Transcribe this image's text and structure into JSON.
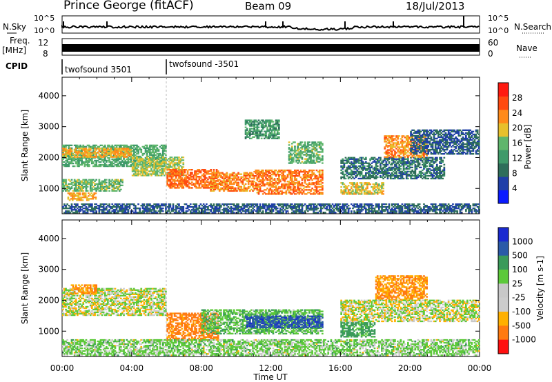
{
  "header": {
    "station": "Prince George (fitACF)",
    "beam": "Beam 09",
    "date": "18/Jul/2013"
  },
  "top_panels": {
    "nsky_label": "N.Sky",
    "nsky_ticks": [
      "10^5",
      "10^0"
    ],
    "nsearch_label": "N.Search",
    "nsearch_ticks": [
      "10^5",
      "10^0"
    ],
    "freq_label": "Freq.",
    "freq_unit": "[MHz]",
    "freq_ticks": [
      "12",
      "8"
    ],
    "nave_label": "Nave",
    "nave_ticks": [
      "60",
      "0"
    ],
    "cpid_label": "CPID",
    "cpid_segments": [
      {
        "name": "twofsound 3501",
        "start_hour": 0,
        "end_hour": 6
      },
      {
        "name": "twofsound -3501",
        "start_hour": 6,
        "end_hour": 24
      }
    ]
  },
  "colors": {
    "power_scale": [
      "#0a1aff",
      "#1f3fa8",
      "#2e6e5a",
      "#3f9a6a",
      "#5fb66c",
      "#e7c02c",
      "#ff8a1a",
      "#ff4a10",
      "#ff1a10"
    ],
    "velocity_scale": [
      "#ff1010",
      "#ff7a10",
      "#ffb000",
      "#cccccc",
      "#c8c8c8",
      "#5cc93a",
      "#3a9a5a",
      "#2a5aa8",
      "#1a2ad0"
    ]
  },
  "chart_data": [
    {
      "type": "heatmap",
      "name": "power",
      "xlabel": "",
      "ylabel": "Slant Range [km]",
      "xlim": [
        0,
        24
      ],
      "ylim": [
        180,
        4600
      ],
      "y_ticks": [
        "1000",
        "2000",
        "3000",
        "4000"
      ],
      "colorbar_label": "Power [dB]",
      "colorbar_ticks": [
        "4",
        "8",
        "12",
        "16",
        "20",
        "24",
        "28"
      ],
      "colorbar_range": [
        0,
        32
      ],
      "regions": [
        {
          "t0": 0.0,
          "t1": 6.0,
          "r0": 1700,
          "r1": 2400,
          "level": 14
        },
        {
          "t0": 0.0,
          "t1": 4.0,
          "r0": 2000,
          "r1": 2300,
          "level": 22
        },
        {
          "t0": 0.0,
          "t1": 3.5,
          "r0": 900,
          "r1": 1300,
          "level": 16
        },
        {
          "t0": 0.3,
          "t1": 2.0,
          "r0": 600,
          "r1": 850,
          "level": 22
        },
        {
          "t0": 4.0,
          "t1": 7.0,
          "r0": 1400,
          "r1": 2000,
          "level": 18
        },
        {
          "t0": 6.0,
          "t1": 9.0,
          "r0": 1000,
          "r1": 1600,
          "level": 26
        },
        {
          "t0": 8.5,
          "t1": 11.0,
          "r0": 900,
          "r1": 1500,
          "level": 24
        },
        {
          "t0": 11.0,
          "t1": 15.0,
          "r0": 800,
          "r1": 1600,
          "level": 25
        },
        {
          "t0": 10.5,
          "t1": 12.5,
          "r0": 2600,
          "r1": 3200,
          "level": 12
        },
        {
          "t0": 13.0,
          "t1": 15.0,
          "r0": 1800,
          "r1": 2500,
          "level": 15
        },
        {
          "t0": 16.0,
          "t1": 18.5,
          "r0": 800,
          "r1": 1200,
          "level": 20
        },
        {
          "t0": 16.0,
          "t1": 22.0,
          "r0": 1300,
          "r1": 2000,
          "level": 8
        },
        {
          "t0": 18.5,
          "t1": 21.0,
          "r0": 2000,
          "r1": 2700,
          "level": 24
        },
        {
          "t0": 20.0,
          "t1": 24.0,
          "r0": 2100,
          "r1": 2900,
          "level": 6
        },
        {
          "t0": 0.0,
          "t1": 24.0,
          "r0": 200,
          "r1": 500,
          "level": 6
        }
      ]
    },
    {
      "type": "heatmap",
      "name": "velocity",
      "xlabel": "Time UT",
      "ylabel": "Slant Range [km]",
      "xlim": [
        0,
        24
      ],
      "ylim": [
        180,
        4600
      ],
      "x_ticks": [
        "00:00",
        "04:00",
        "08:00",
        "12:00",
        "16:00",
        "20:00",
        "00:00"
      ],
      "y_ticks": [
        "1000",
        "2000",
        "3000",
        "4000"
      ],
      "colorbar_label": "Velocity [m s-1]",
      "colorbar_ticks": [
        "1000",
        "500",
        "100",
        "25",
        "-25",
        "-100",
        "-500",
        "-1000"
      ],
      "regions": [
        {
          "t0": 0.0,
          "t1": 6.0,
          "r0": 1500,
          "r1": 2400,
          "vel": 0
        },
        {
          "t0": 0.5,
          "t1": 2.0,
          "r0": 2200,
          "r1": 2500,
          "vel": -300
        },
        {
          "t0": 6.0,
          "t1": 9.0,
          "r0": 700,
          "r1": 1600,
          "vel": -400
        },
        {
          "t0": 8.0,
          "t1": 15.0,
          "r0": 900,
          "r1": 1700,
          "vel": 150
        },
        {
          "t0": 10.5,
          "t1": 15.0,
          "r0": 1100,
          "r1": 1500,
          "vel": 700
        },
        {
          "t0": 16.0,
          "t1": 18.0,
          "r0": 800,
          "r1": 1300,
          "vel": 300
        },
        {
          "t0": 18.0,
          "t1": 21.0,
          "r0": 2000,
          "r1": 2800,
          "vel": -300
        },
        {
          "t0": 16.0,
          "t1": 24.0,
          "r0": 1300,
          "r1": 2000,
          "vel": 0
        },
        {
          "t0": 0.0,
          "t1": 24.0,
          "r0": 200,
          "r1": 700,
          "vel": 80
        }
      ]
    }
  ]
}
